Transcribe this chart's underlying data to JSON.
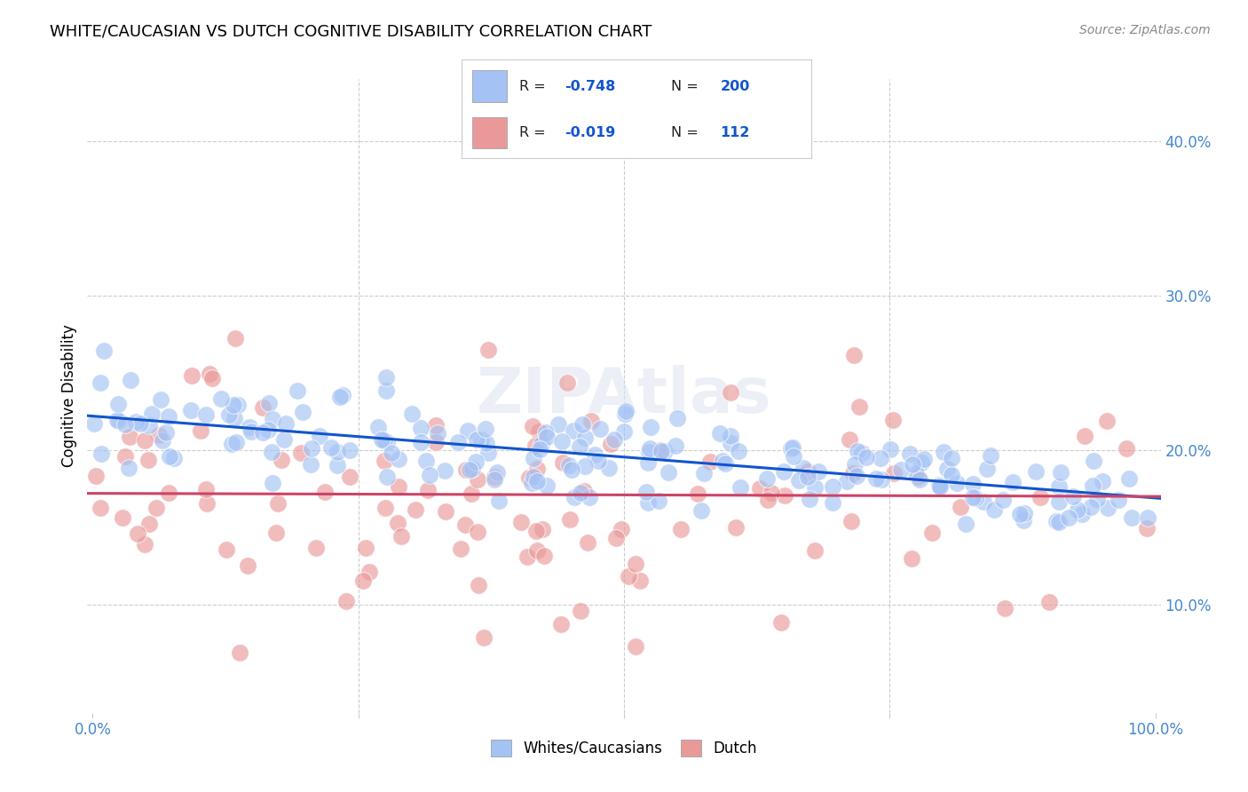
{
  "title": "WHITE/CAUCASIAN VS DUTCH COGNITIVE DISABILITY CORRELATION CHART",
  "source": "Source: ZipAtlas.com",
  "ylabel": "Cognitive Disability",
  "y_ticks": [
    0.1,
    0.2,
    0.3,
    0.4
  ],
  "y_tick_labels": [
    "10.0%",
    "20.0%",
    "30.0%",
    "40.0%"
  ],
  "R_blue": -0.748,
  "N_blue": 200,
  "R_pink": -0.019,
  "N_pink": 112,
  "blue_color": "#a4c2f4",
  "pink_color": "#ea9999",
  "blue_fill": "#6fa8dc",
  "pink_fill": "#e06666",
  "blue_line_color": "#1155cc",
  "pink_line_color": "#cc4466",
  "legend_box_blue": "#a4c2f4",
  "legend_box_pink": "#ea9999",
  "watermark_color": "#e8eaf0",
  "background_color": "#ffffff",
  "grid_color": "#cccccc",
  "tick_color": "#4488cc",
  "seed": 7,
  "blue_intercept": 0.222,
  "blue_slope": -0.053,
  "blue_noise": 0.015,
  "pink_intercept": 0.172,
  "pink_slope": -0.002,
  "pink_noise": 0.048,
  "xlim_min": -0.005,
  "xlim_max": 1.005,
  "ylim_min": 0.03,
  "ylim_max": 0.44
}
